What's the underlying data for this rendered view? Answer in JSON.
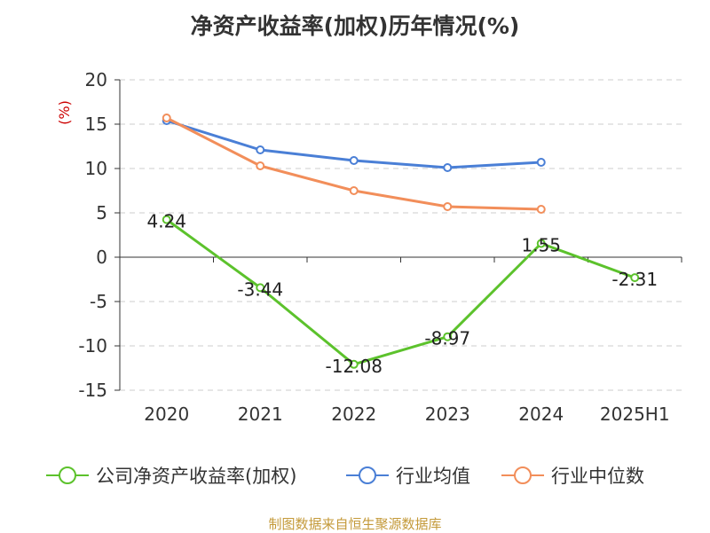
{
  "chart_data": {
    "type": "line",
    "title": "净资产收益率(加权)历年情况(%)",
    "ylabel": "(%)",
    "xlabel": "",
    "categories": [
      "2020",
      "2021",
      "2022",
      "2023",
      "2024",
      "2025H1"
    ],
    "ylim": [
      -15,
      20
    ],
    "yticks": [
      -15,
      -10,
      -5,
      0,
      5,
      10,
      15,
      20
    ],
    "grid": true,
    "legend_position": "bottom",
    "series": [
      {
        "name": "公司净资产收益率(加权)",
        "color": "#5cc22c",
        "values": [
          4.24,
          -3.44,
          -12.08,
          -8.97,
          1.55,
          -2.31
        ],
        "labels": [
          "4.24",
          "-3.44",
          "-12.08",
          "-8.97",
          "1.55",
          "-2.31"
        ]
      },
      {
        "name": "行业均值",
        "color": "#4a7fd6",
        "values": [
          15.4,
          12.1,
          10.9,
          10.1,
          10.7,
          null
        ]
      },
      {
        "name": "行业中位数",
        "color": "#f28e5a",
        "values": [
          15.7,
          10.3,
          7.5,
          5.7,
          5.4,
          null
        ]
      }
    ]
  },
  "source": "制图数据来自恒生聚源数据库"
}
